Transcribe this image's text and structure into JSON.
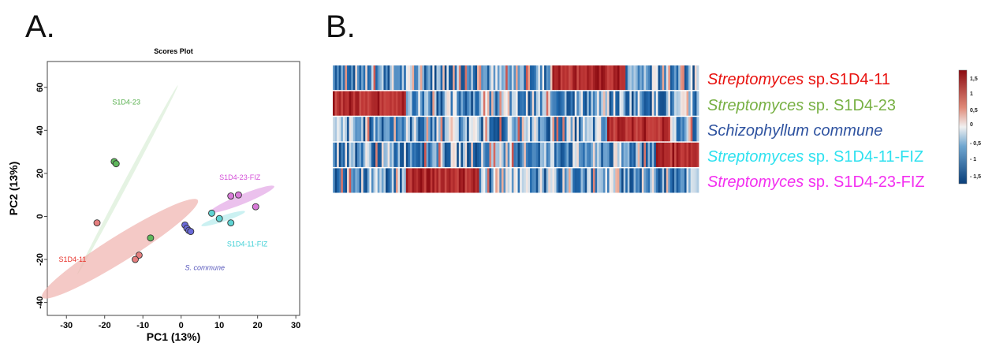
{
  "panels": {
    "a_label": "A.",
    "b_label": "B."
  },
  "chart_data": [
    {
      "type": "scatter",
      "title": "Scores Plot",
      "xlabel": "PC1 (13%)",
      "ylabel": "PC2 (13%)",
      "xlim": [
        -35,
        31
      ],
      "ylim": [
        -46,
        72
      ],
      "xticks": [
        -30,
        -20,
        -10,
        0,
        10,
        20,
        30
      ],
      "yticks": [
        -40,
        -20,
        0,
        20,
        40,
        60
      ],
      "grid": false,
      "series": [
        {
          "name": "S1D4-23",
          "color": "#5fb85c",
          "text_color": "#58b04e",
          "points": [
            [
              -17.5,
              25.5
            ],
            [
              -17,
              24.5
            ],
            [
              -8,
              -10
            ]
          ],
          "label_at": [
            -18,
            52
          ],
          "ellipse": {
            "center": [
              -14,
              17
            ],
            "rx": 28,
            "ry": 1.0,
            "angle_deg": -62,
            "fill": "#cfe9cc",
            "opacity": 0.55
          }
        },
        {
          "name": "S1D4-11",
          "color": "#e57f7f",
          "text_color": "#e8342c",
          "points": [
            [
              -22,
              -3
            ],
            [
              -11,
              -18
            ],
            [
              -12,
              -20
            ]
          ],
          "label_at": [
            -32,
            -21
          ],
          "ellipse": {
            "center": [
              -16,
              -15
            ],
            "rx": 24,
            "ry": 6,
            "angle_deg": -32,
            "fill": "#f0b2ae",
            "opacity": 0.7
          }
        },
        {
          "name": "S1D4-23-FIZ",
          "color": "#d87bd8",
          "text_color": "#d44fd8",
          "points": [
            [
              13,
              9.5
            ],
            [
              15,
              10
            ],
            [
              19.5,
              4.5
            ]
          ],
          "label_at": [
            10,
            17
          ],
          "ellipse": {
            "center": [
              16,
              8
            ],
            "rx": 9,
            "ry": 2.2,
            "angle_deg": -22,
            "fill": "#e8b6ea",
            "opacity": 0.85
          }
        },
        {
          "name": "S1D4-11-FIZ",
          "color": "#5fd3d3",
          "text_color": "#3fd0d6",
          "points": [
            [
              8,
              1.5
            ],
            [
              10,
              -1
            ],
            [
              13,
              -3
            ]
          ],
          "label_at": [
            12,
            -14
          ],
          "ellipse": {
            "center": [
              11,
              -1
            ],
            "rx": 6,
            "ry": 1.4,
            "angle_deg": -18,
            "fill": "#c2eef0",
            "opacity": 0.85
          }
        },
        {
          "name": "S. commune",
          "color": "#6a6ad8",
          "text_color": "#5555bb",
          "italic": true,
          "points": [
            [
              1,
              -4
            ],
            [
              1.5,
              -5.5
            ],
            [
              2,
              -6.5
            ],
            [
              2.5,
              -7
            ]
          ],
          "label_at": [
            1,
            -25
          ],
          "ellipse": null
        }
      ]
    },
    {
      "type": "heatmap",
      "rows": [
        {
          "italic": "Streptomyces",
          "rest": " sp.S1D4-11",
          "color": "#e8120f"
        },
        {
          "italic": "Streptomyces",
          "rest": " sp. S1D4-23",
          "color": "#77b043"
        },
        {
          "italic": "Schizophyllum commune",
          "rest": "",
          "color": "#2f53a0"
        },
        {
          "italic": "Streptomyces",
          "rest": " sp. S1D4-11-FIZ",
          "color": "#2ee1ef"
        },
        {
          "italic": "Streptomyces",
          "rest": " sp. S1D4-23-FIZ",
          "color": "#f32ff0"
        }
      ],
      "n_columns": 180,
      "high_blocks": [
        [
          0.6,
          0.8
        ],
        [
          0.0,
          0.2
        ],
        [
          0.75,
          0.92
        ],
        [
          0.88,
          1.0
        ],
        [
          0.2,
          0.4
        ]
      ],
      "colorscale": {
        "ticks": [
          "1,5",
          "1",
          "0,5",
          "0",
          "- 0,5",
          "- 1",
          "- 1,5"
        ],
        "low_color": "#0a3f7a",
        "mid_color": "#f1f1f1",
        "high_color": "#8c0b12"
      }
    }
  ]
}
